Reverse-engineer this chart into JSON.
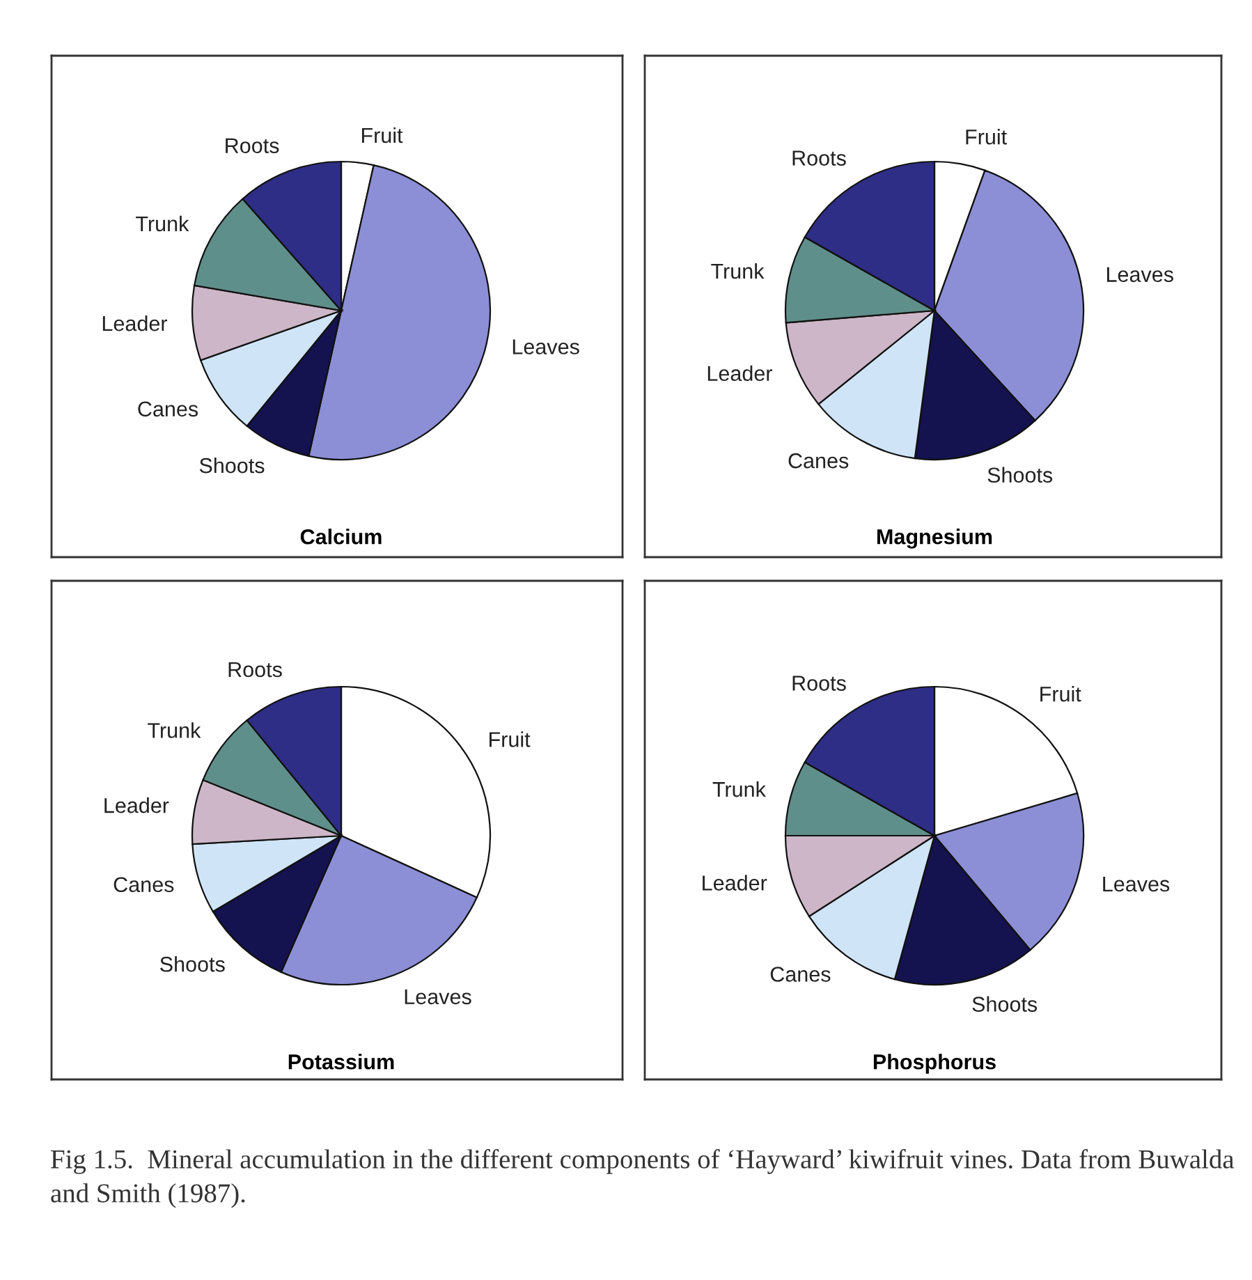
{
  "chart_data": [
    {
      "type": "pie",
      "title": "Calcium",
      "categories": [
        "Fruit",
        "Leaves",
        "Shoots",
        "Canes",
        "Leader",
        "Trunk",
        "Roots"
      ],
      "values": [
        3.5,
        50,
        7.4,
        8.7,
        8.1,
        10.8,
        11.5
      ],
      "colors": [
        "#ffffff",
        "#8c8fd6",
        "#14124f",
        "#cfe4f7",
        "#cdb6c8",
        "#5f8f8a",
        "#2e2e86"
      ]
    },
    {
      "type": "pie",
      "title": "Magnesium",
      "categories": [
        "Fruit",
        "Leaves",
        "Shoots",
        "Canes",
        "Leader",
        "Trunk",
        "Roots"
      ],
      "values": [
        5.5,
        32.7,
        13.9,
        12.1,
        9.5,
        9.5,
        16.8
      ],
      "colors": [
        "#ffffff",
        "#8c8fd6",
        "#14124f",
        "#cfe4f7",
        "#cdb6c8",
        "#5f8f8a",
        "#2e2e86"
      ]
    },
    {
      "type": "pie",
      "title": "Potassium",
      "categories": [
        "Fruit",
        "Leaves",
        "Shoots",
        "Canes",
        "Leader",
        "Trunk",
        "Roots"
      ],
      "values": [
        31.8,
        24.8,
        9.9,
        7.6,
        7.0,
        8.0,
        10.9
      ],
      "colors": [
        "#ffffff",
        "#8c8fd6",
        "#14124f",
        "#cfe4f7",
        "#cdb6c8",
        "#5f8f8a",
        "#2e2e86"
      ]
    },
    {
      "type": "pie",
      "title": "Phosphorus",
      "categories": [
        "Fruit",
        "Leaves",
        "Shoots",
        "Canes",
        "Leader",
        "Trunk",
        "Roots"
      ],
      "values": [
        20.4,
        18.5,
        15.4,
        11.6,
        9.1,
        8.2,
        16.8
      ],
      "colors": [
        "#ffffff",
        "#8c8fd6",
        "#14124f",
        "#cfe4f7",
        "#cdb6c8",
        "#5f8f8a",
        "#2e2e86"
      ],
      "annotations": [
        "Fig 1.5.  Mineral accumulation in the different components of ‘Hayward’ kiwifruit vines. Data from Buwalda and Smith (1987)."
      ]
    }
  ]
}
